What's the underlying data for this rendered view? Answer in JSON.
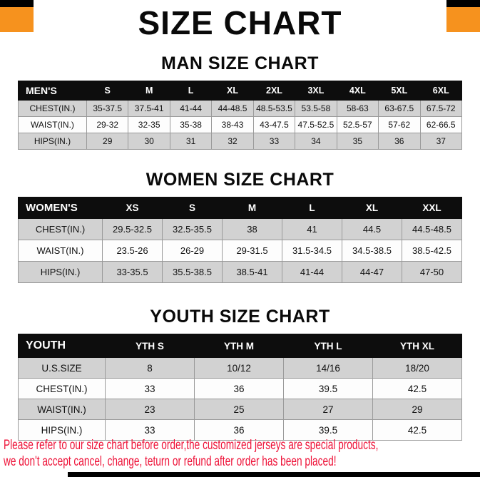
{
  "page": {
    "title": "SIZE CHART"
  },
  "colors": {
    "accent_orange": "#f6921e",
    "header_bg": "#0d0d0d",
    "stripe_gray": "#d2d2d2",
    "notice_red": "#ee1238"
  },
  "tables": [
    {
      "id": "men",
      "title": "MAN SIZE CHART",
      "header": [
        "MEN'S",
        "S",
        "M",
        "L",
        "XL",
        "2XL",
        "3XL",
        "4XL",
        "5XL",
        "6XL"
      ],
      "rows": [
        [
          "CHEST(IN.)",
          "35-37.5",
          "37.5-41",
          "41-44",
          "44-48.5",
          "48.5-53.5",
          "53.5-58",
          "58-63",
          "63-67.5",
          "67.5-72"
        ],
        [
          "WAIST(IN.)",
          "29-32",
          "32-35",
          "35-38",
          "38-43",
          "43-47.5",
          "47.5-52.5",
          "52.5-57",
          "57-62",
          "62-66.5"
        ],
        [
          "HIPS(IN.)",
          "29",
          "30",
          "31",
          "32",
          "33",
          "34",
          "35",
          "36",
          "37"
        ]
      ]
    },
    {
      "id": "women",
      "title": "WOMEN SIZE CHART",
      "header": [
        "WOMEN'S",
        "XS",
        "S",
        "M",
        "L",
        "XL",
        "XXL"
      ],
      "rows": [
        [
          "CHEST(IN.)",
          "29.5-32.5",
          "32.5-35.5",
          "38",
          "41",
          "44.5",
          "44.5-48.5"
        ],
        [
          "WAIST(IN.)",
          "23.5-26",
          "26-29",
          "29-31.5",
          "31.5-34.5",
          "34.5-38.5",
          "38.5-42.5"
        ],
        [
          "HIPS(IN.)",
          "33-35.5",
          "35.5-38.5",
          "38.5-41",
          "41-44",
          "44-47",
          "47-50"
        ]
      ]
    },
    {
      "id": "youth",
      "title": "YOUTH SIZE CHART",
      "header": [
        "YOUTH",
        "YTH S",
        "YTH M",
        "YTH L",
        "YTH XL"
      ],
      "rows": [
        [
          "U.S.SIZE",
          "8",
          "10/12",
          "14/16",
          "18/20"
        ],
        [
          "CHEST(IN.)",
          "33",
          "36",
          "39.5",
          "42.5"
        ],
        [
          "WAIST(IN.)",
          "23",
          "25",
          "27",
          "29"
        ],
        [
          "HIPS(IN.)",
          "33",
          "36",
          "39.5",
          "42.5"
        ]
      ]
    }
  ],
  "footer": {
    "lines": [
      "Please refer to our size chart before order,the customized jerseys are special products,",
      "we don't accept cancel, change, teturn or refund after order has been placed!"
    ]
  }
}
